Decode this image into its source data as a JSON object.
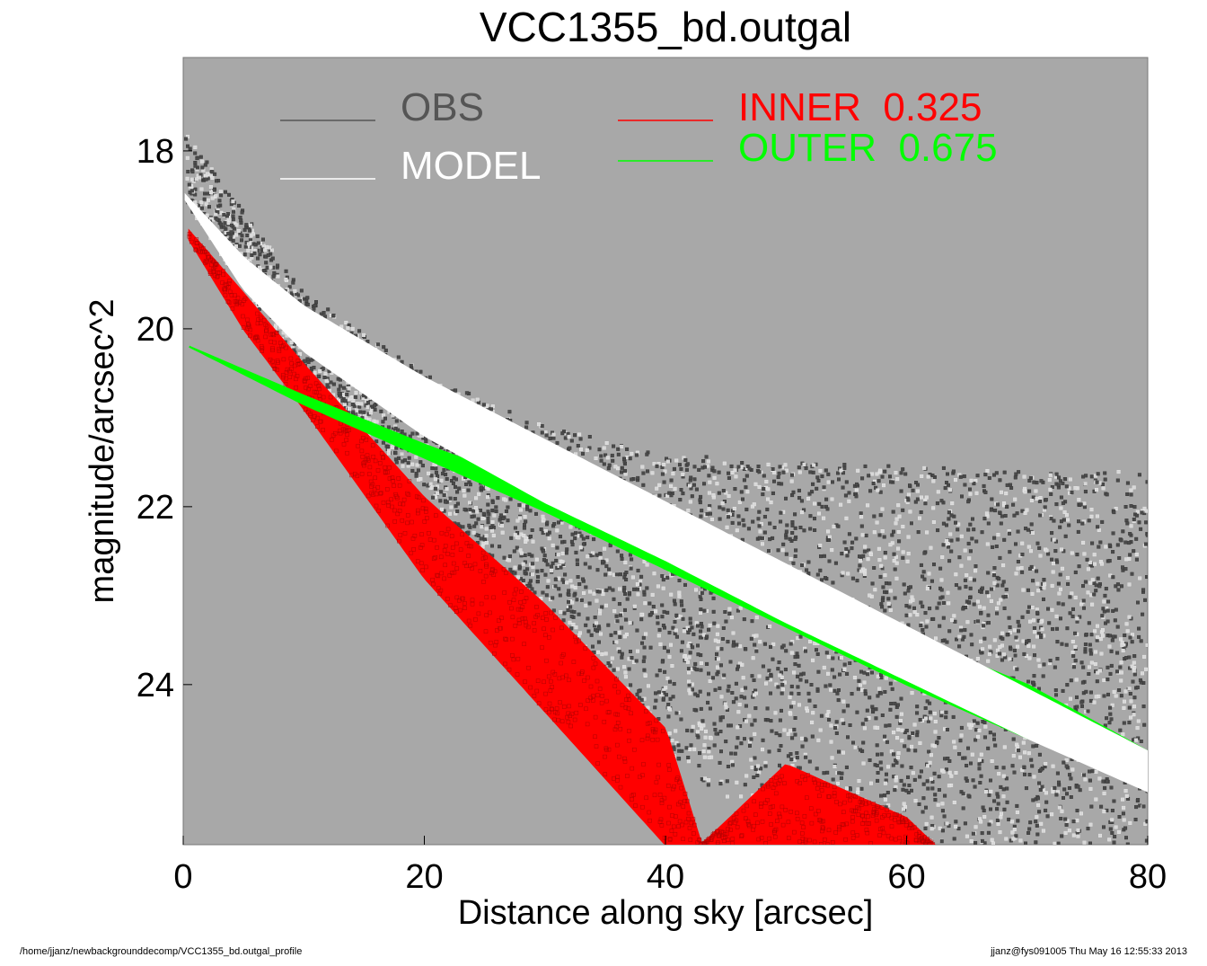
{
  "chart_data": {
    "type": "scatter",
    "title": "VCC1355_bd.outgal",
    "xlabel": "Distance along sky [arcsec]",
    "ylabel": "magnitude/arcsec^2",
    "xlim": [
      0,
      80
    ],
    "ylim": [
      25.8,
      16.95
    ],
    "y_inverted": true,
    "x_ticks": [
      0,
      20,
      40,
      60,
      80
    ],
    "y_ticks": [
      18,
      20,
      22,
      24
    ],
    "plot_background": "#a8a8a8",
    "grid": false,
    "legend": [
      {
        "label": "OBS",
        "color": "#555555"
      },
      {
        "label": "MODEL",
        "color": "#ffffff"
      },
      {
        "label": "INNER  0.325",
        "color": "#ff0000"
      },
      {
        "label": "OUTER  0.675",
        "color": "#00ff00"
      }
    ],
    "series": [
      {
        "name": "INNER  0.325",
        "color": "#ff0000",
        "x": [
          0.5,
          5,
          10,
          20,
          30,
          40,
          43,
          50,
          60,
          62.3
        ],
        "y_low": [
          18.9,
          19.6,
          20.4,
          21.9,
          23.1,
          24.5,
          25.8,
          24.9,
          25.5,
          25.8
        ],
        "y_high": [
          19.0,
          20.0,
          20.9,
          22.8,
          24.3,
          25.8,
          25.8,
          25.8,
          25.8,
          25.8
        ]
      },
      {
        "name": "OUTER  0.675",
        "color": "#00ff00",
        "x": [
          0.5,
          10,
          20,
          30,
          40,
          50,
          60,
          70,
          80
        ],
        "y_low": [
          20.2,
          20.75,
          21.3,
          21.8,
          22.3,
          22.9,
          23.45,
          24.0,
          24.75
        ],
        "y_high": [
          20.2,
          20.85,
          21.45,
          22.05,
          22.7,
          23.35,
          24.0,
          24.6,
          25.1
        ]
      },
      {
        "name": "MODEL",
        "color": "#ffffff",
        "x": [
          0.2,
          5,
          10,
          20,
          30,
          40,
          50,
          60,
          70,
          80
        ],
        "y_low": [
          18.5,
          19.2,
          19.75,
          20.55,
          21.25,
          21.95,
          22.65,
          23.35,
          24.05,
          24.75
        ],
        "y_high": [
          18.55,
          19.55,
          20.25,
          21.2,
          21.95,
          22.6,
          23.3,
          23.95,
          24.6,
          25.2
        ]
      },
      {
        "name": "OBS",
        "color": "#555555",
        "x": [
          0.2,
          10,
          20,
          30,
          40,
          50,
          60,
          70,
          80
        ],
        "y_low": [
          17.8,
          19.6,
          20.5,
          21.1,
          21.4,
          21.5,
          21.55,
          21.6,
          21.6
        ],
        "y_high": [
          18.6,
          20.5,
          21.8,
          23.4,
          24.8,
          25.8,
          25.8,
          25.8,
          25.8
        ]
      }
    ]
  },
  "footer": {
    "path": "/home/jjanz/newbackgrounddecomp/VCC1355_bd.outgal_profile",
    "stamp": "jjanz@fys091005  Thu May 16 12:55:33 2013"
  }
}
